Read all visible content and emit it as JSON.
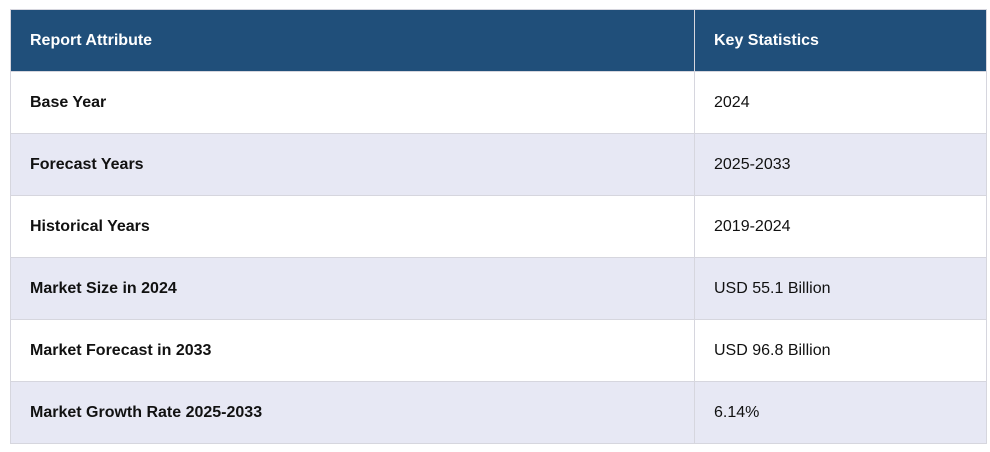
{
  "table": {
    "header": [
      "Report Attribute",
      "Key Statistics"
    ],
    "rows": [
      [
        "Base Year",
        "2024"
      ],
      [
        "Forecast Years",
        "2025-2033"
      ],
      [
        "Historical Years",
        "2019-2024"
      ],
      [
        "Market Size in 2024",
        "USD 55.1 Billion"
      ],
      [
        "Market Forecast in 2033",
        "USD 96.8 Billion"
      ],
      [
        "Market Growth Rate 2025-2033",
        "6.14%"
      ]
    ]
  }
}
